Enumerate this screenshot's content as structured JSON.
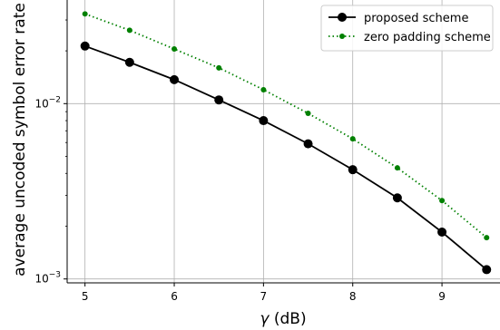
{
  "chart_data": {
    "type": "line",
    "xlabel_symbol": "γ",
    "xlabel_unit": " (dB)",
    "ylabel": "average uncoded symbol error rate",
    "x": [
      5,
      5.5,
      6,
      6.5,
      7,
      7.5,
      8,
      8.5,
      9,
      9.5
    ],
    "xlim": [
      4.8,
      9.65
    ],
    "ylim": [
      0.00095,
      0.039
    ],
    "yscale": "log",
    "xticks": [
      5,
      6,
      7,
      8,
      9
    ],
    "yticks": [
      {
        "value": 0.01,
        "base": "10",
        "exp": "−2"
      },
      {
        "value": 0.001,
        "base": "10",
        "exp": "−3"
      }
    ],
    "grid": true,
    "legend_position": "top-right",
    "series": [
      {
        "name": "proposed scheme",
        "color": "#000000",
        "line_style": "solid",
        "marker": "large-dot",
        "values": [
          0.0213,
          0.0172,
          0.0137,
          0.0105,
          0.008,
          0.0059,
          0.0042,
          0.0029,
          0.00185,
          0.00113
        ]
      },
      {
        "name": "zero padding scheme",
        "color": "#008000",
        "line_style": "dotted",
        "marker": "small-dot",
        "values": [
          0.0325,
          0.0262,
          0.0205,
          0.016,
          0.012,
          0.0088,
          0.0063,
          0.0043,
          0.0028,
          0.00172
        ]
      }
    ]
  }
}
